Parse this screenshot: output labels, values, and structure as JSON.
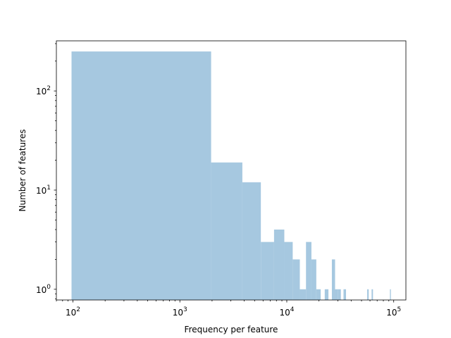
{
  "chart_data": {
    "type": "bar",
    "title": "",
    "xlabel": "Frequency per feature",
    "ylabel": "Number of features",
    "x_scale": "log",
    "y_scale": "log",
    "xlim": [
      70,
      130000
    ],
    "ylim": [
      0.78,
      320
    ],
    "grid": false,
    "bar_color": "#a6c8e0",
    "x_ticks": [
      {
        "value": 100,
        "base": "10",
        "exp": "2"
      },
      {
        "value": 1000,
        "base": "10",
        "exp": "3"
      },
      {
        "value": 10000,
        "base": "10",
        "exp": "4"
      },
      {
        "value": 100000,
        "base": "10",
        "exp": "5"
      }
    ],
    "y_ticks": [
      {
        "value": 1,
        "base": "10",
        "exp": "0"
      },
      {
        "value": 10,
        "base": "10",
        "exp": "1"
      },
      {
        "value": 100,
        "base": "10",
        "exp": "2"
      }
    ],
    "bins": [
      {
        "x0": 97,
        "x1": 1960,
        "count": 250
      },
      {
        "x0": 1960,
        "x1": 3840,
        "count": 19
      },
      {
        "x0": 3840,
        "x1": 5720,
        "count": 12
      },
      {
        "x0": 5720,
        "x1": 7600,
        "count": 3
      },
      {
        "x0": 7600,
        "x1": 9480,
        "count": 4
      },
      {
        "x0": 9480,
        "x1": 11360,
        "count": 3
      },
      {
        "x0": 11360,
        "x1": 13240,
        "count": 2
      },
      {
        "x0": 13240,
        "x1": 15120,
        "count": 1
      },
      {
        "x0": 15120,
        "x1": 17000,
        "count": 3
      },
      {
        "x0": 17000,
        "x1": 18880,
        "count": 2
      },
      {
        "x0": 18880,
        "x1": 20760,
        "count": 1
      },
      {
        "x0": 22640,
        "x1": 24520,
        "count": 1
      },
      {
        "x0": 26400,
        "x1": 28280,
        "count": 2
      },
      {
        "x0": 28280,
        "x1": 30160,
        "count": 1
      },
      {
        "x0": 30160,
        "x1": 32040,
        "count": 1
      },
      {
        "x0": 33920,
        "x1": 35800,
        "count": 1
      },
      {
        "x0": 56480,
        "x1": 58360,
        "count": 1
      },
      {
        "x0": 62120,
        "x1": 64000,
        "count": 1
      },
      {
        "x0": 92200,
        "x1": 94080,
        "count": 1
      }
    ]
  }
}
